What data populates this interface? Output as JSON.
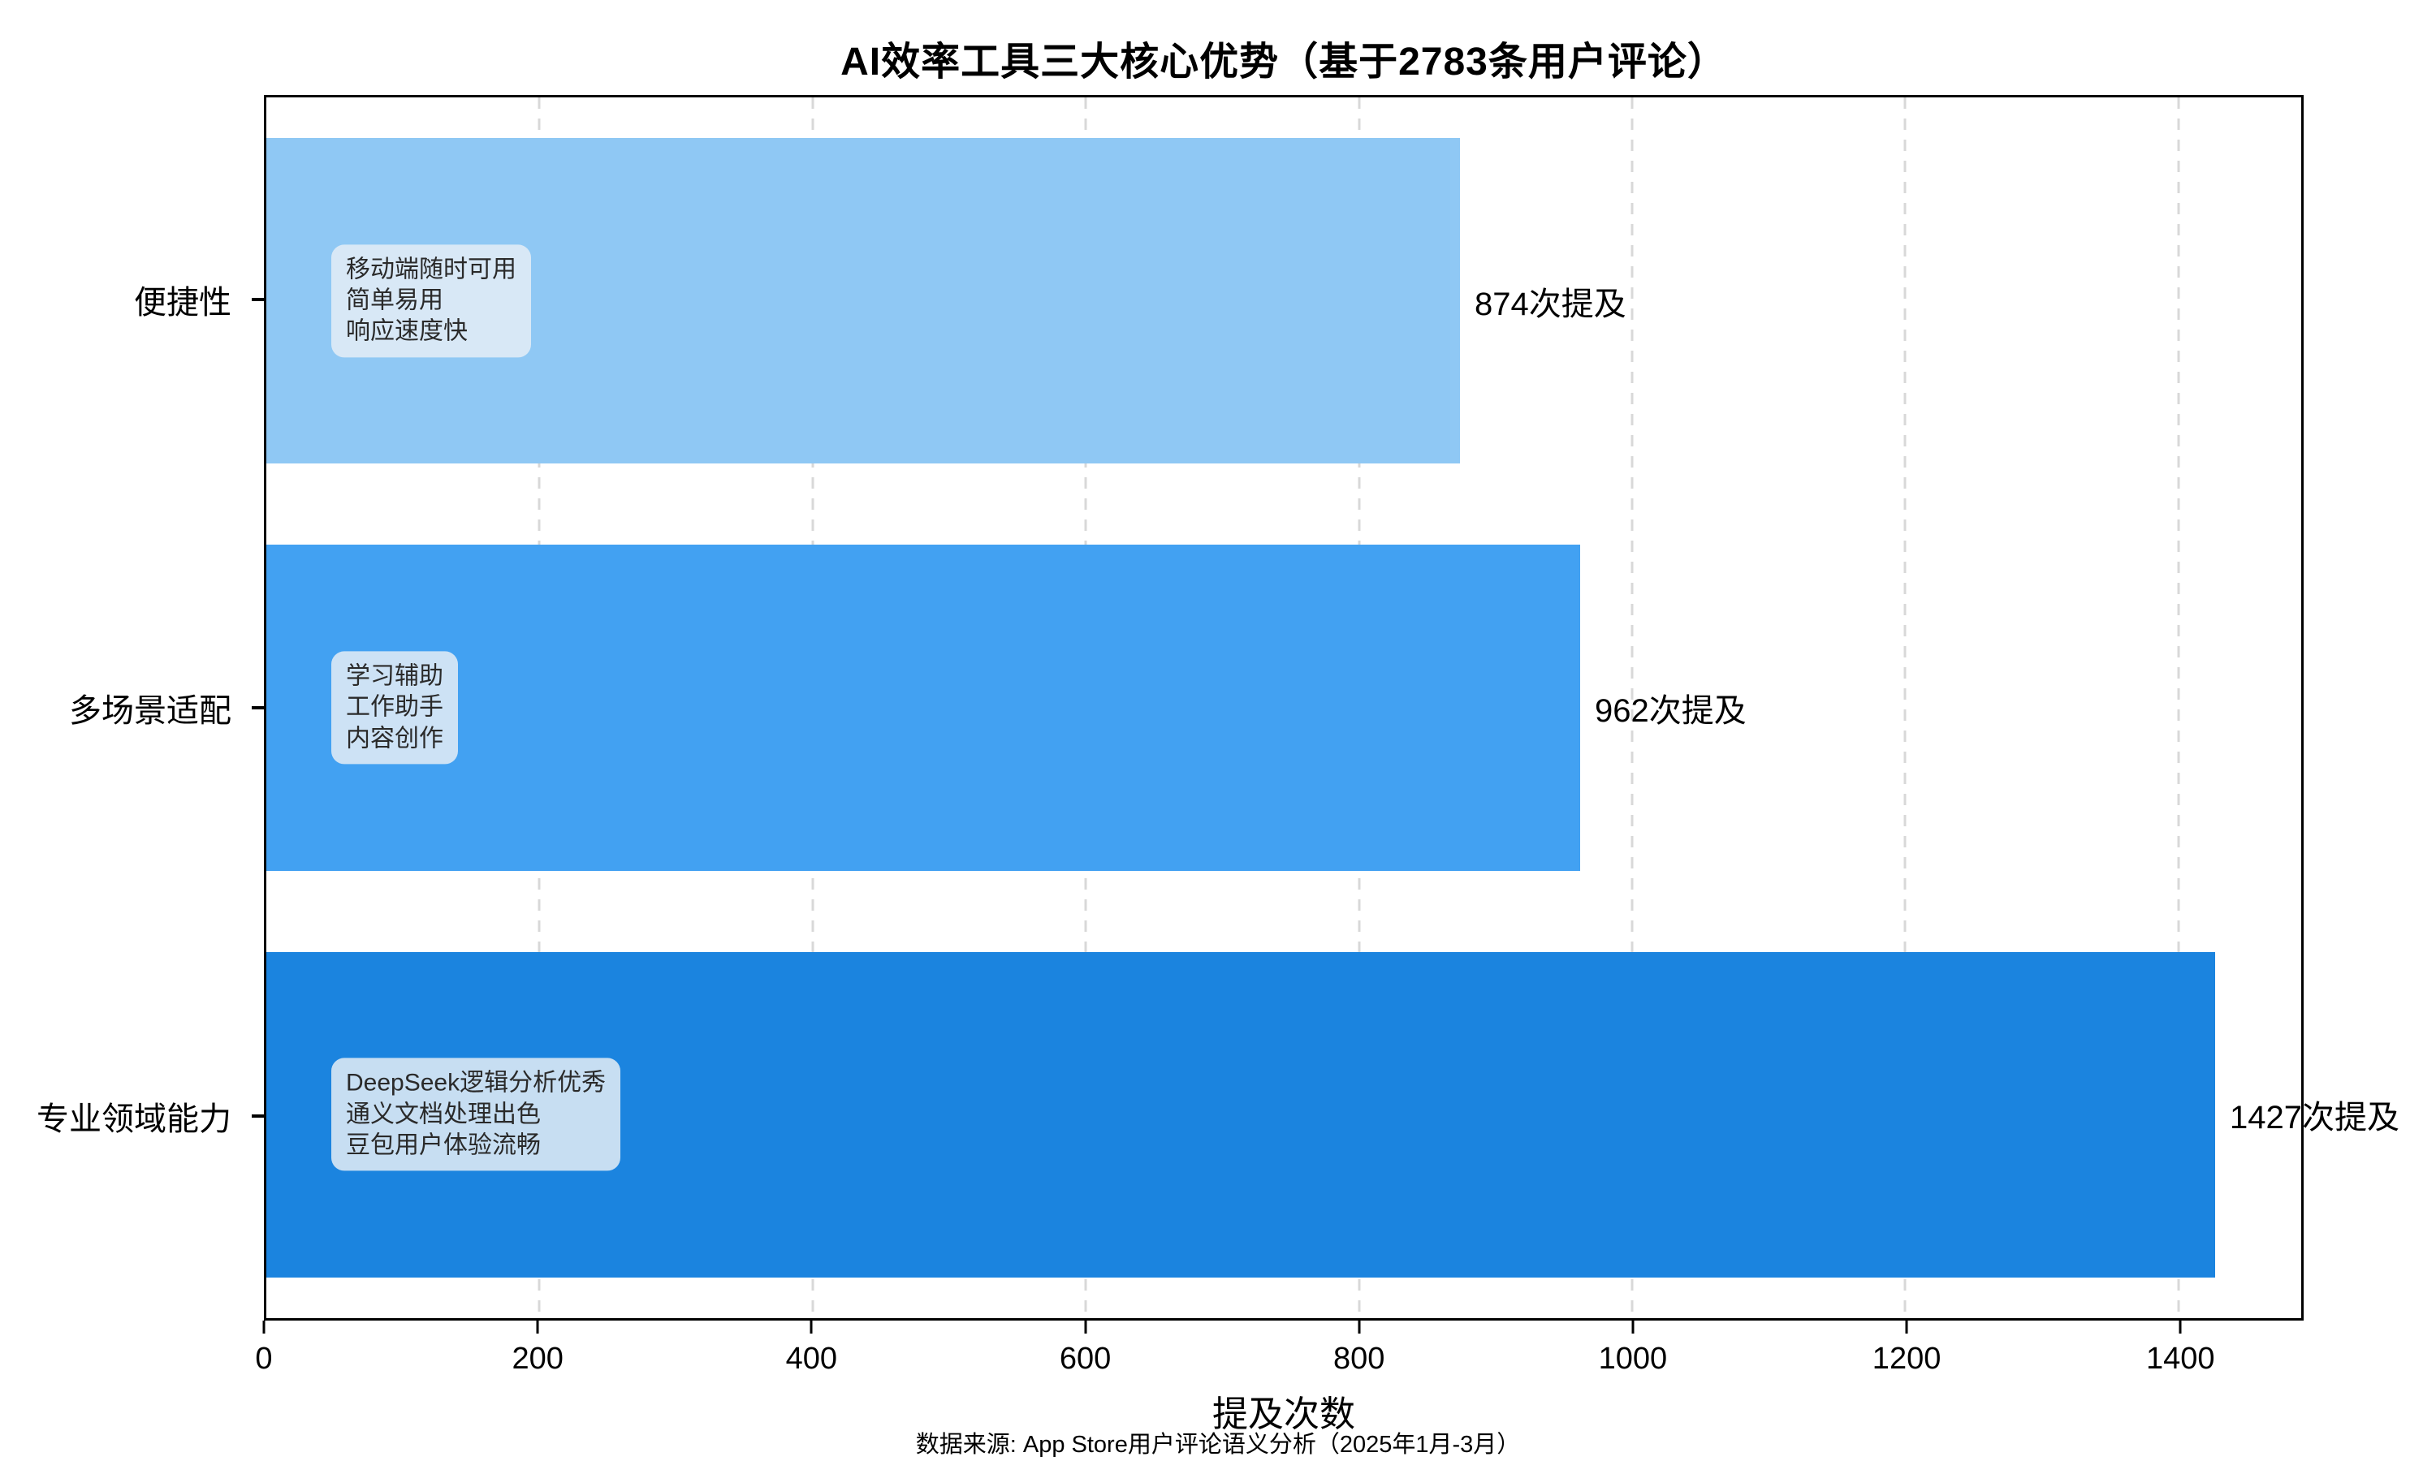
{
  "title": "AI效率工具三大核心优势（基于2783条用户评论）",
  "source_note": "数据来源: App Store用户评论语义分析（2025年1月-3月）",
  "chart_data": {
    "type": "bar",
    "orientation": "horizontal",
    "title": "AI效率工具三大核心优势（基于2783条用户评论）",
    "xlabel": "提及次数",
    "ylabel": "",
    "xlim": [
      0,
      1490
    ],
    "x_ticks": [
      0,
      200,
      400,
      600,
      800,
      1000,
      1200,
      1400
    ],
    "grid": "vertical-dashed",
    "legend": "none",
    "categories": [
      "便捷性",
      "多场景适配",
      "专业领域能力"
    ],
    "values": [
      874,
      962,
      1427
    ],
    "value_labels": [
      "874次提及",
      "962次提及",
      "1427次提及"
    ],
    "bar_colors": [
      "#8FC8F4",
      "#42A1F2",
      "#1B84DF"
    ],
    "annotations": [
      {
        "lines": [
          "移动端随时可用",
          "简单易用",
          "响应速度快"
        ]
      },
      {
        "lines": [
          "学习辅助",
          "工作助手",
          "内容创作"
        ]
      },
      {
        "lines": [
          "DeepSeek逻辑分析优秀",
          "通义文档处理出色",
          "豆包用户体验流畅"
        ]
      }
    ]
  }
}
